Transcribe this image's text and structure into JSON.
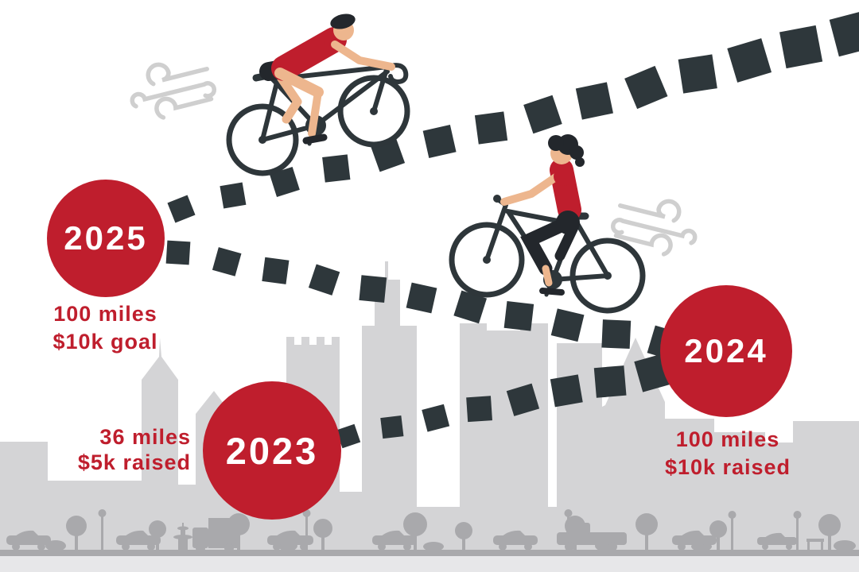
{
  "infographic": {
    "title": "charity-ride-progress-timeline",
    "milestones": [
      {
        "year": "2025",
        "stat1": "100 miles",
        "stat2": "$10k goal"
      },
      {
        "year": "2023",
        "stat1": "36 miles",
        "stat2": "$5k raised"
      },
      {
        "year": "2024",
        "stat1": "100 miles",
        "stat2": "$10k raised"
      }
    ]
  },
  "icons": [
    "road-cyclist-icon",
    "city-cyclist-icon",
    "wind-gust-icon",
    "dashed-road",
    "city-skyline",
    "street-traffic"
  ],
  "colors": {
    "red": "#bf1e2d",
    "dash": "#2e373b",
    "skyline": "#d4d4d6",
    "street": "#a9a9ac",
    "ground": "#e7e7e9",
    "wind": "#cfcfcf",
    "skin": "#edb68e",
    "darkwear": "#23272c",
    "white": "#ffffff"
  }
}
